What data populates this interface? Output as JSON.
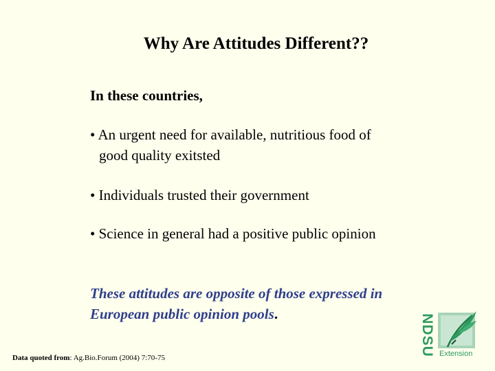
{
  "slide": {
    "title": "Why Are Attitudes Different??",
    "intro": "In these countries,",
    "bullets": [
      {
        "line1": "• An urgent need for available, nutritious food of",
        "line2": "good quality exitsted"
      },
      {
        "line1": "• Individuals trusted their government"
      },
      {
        "line1": "• Science in general had a positive public opinion"
      }
    ],
    "conclusion": {
      "line1": "These attitudes are opposite of those expressed in",
      "line2": "European public opinion pools",
      "period": "."
    },
    "source": {
      "label": "Data quoted from",
      "colon": ": ",
      "citation": "Ag.Bio.Forum (2004) 7:70-75"
    }
  },
  "logo": {
    "letters": "NDSU",
    "subtitle": "Extension",
    "icon": "wheat-leaf-icon",
    "color": "#2E9A5E"
  }
}
